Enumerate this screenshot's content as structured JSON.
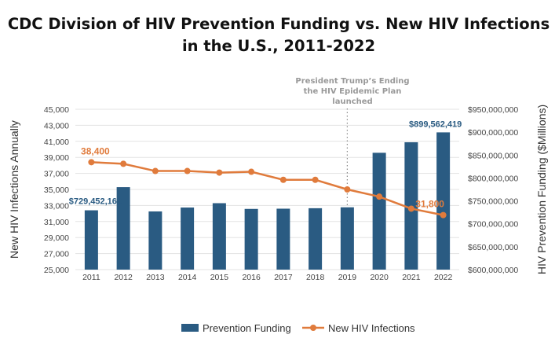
{
  "chart_data": {
    "type": "bar+line",
    "title_lines": [
      "CDC Division of HIV Prevention Funding vs. New HIV Infections",
      "in the U.S., 2011-2022"
    ],
    "categories": [
      "2011",
      "2012",
      "2013",
      "2014",
      "2015",
      "2016",
      "2017",
      "2018",
      "2019",
      "2020",
      "2021",
      "2022"
    ],
    "ylabel_left": "New HIV Infections Annually",
    "ylabel_right": "HIV Prevention Funding ($Millions)",
    "ylim_left": [
      25000,
      45000
    ],
    "yticks_left": [
      "25,000",
      "27,000",
      "29,000",
      "31,000",
      "33,000",
      "35,000",
      "37,000",
      "39,000",
      "41,000",
      "43,000",
      "45,000"
    ],
    "ylim_right": [
      600000000,
      950000000
    ],
    "yticks_right": [
      "$600,000,000",
      "$650,000,000",
      "$700,000,000",
      "$750,000,000",
      "$800,000,000",
      "$850,000,000",
      "$900,000,000",
      "$950,000,000"
    ],
    "grid": true,
    "legend_placement": "bottom",
    "series": [
      {
        "name": "Prevention Funding",
        "type": "bar",
        "axis": "right",
        "color": "#2a5b82",
        "values": [
          729452162,
          780000000,
          727000000,
          735500000,
          745000000,
          732500000,
          733000000,
          734000000,
          736000000,
          855000000,
          878000000,
          899562419
        ]
      },
      {
        "name": "New HIV Infections",
        "type": "line",
        "axis": "left",
        "color": "#e07b3c",
        "values": [
          38400,
          38200,
          37300,
          37300,
          37100,
          37200,
          36200,
          36200,
          35000,
          34100,
          32600,
          31800
        ]
      }
    ],
    "data_labels": {
      "bar_first": "$729,452,162",
      "bar_last": "$899,562,419",
      "line_first": "38,400",
      "line_last": "31,800"
    },
    "annotation": {
      "category": "2019",
      "lines": [
        "President Trump’s Ending",
        "the HIV Epidemic Plan",
        "launched"
      ]
    }
  }
}
